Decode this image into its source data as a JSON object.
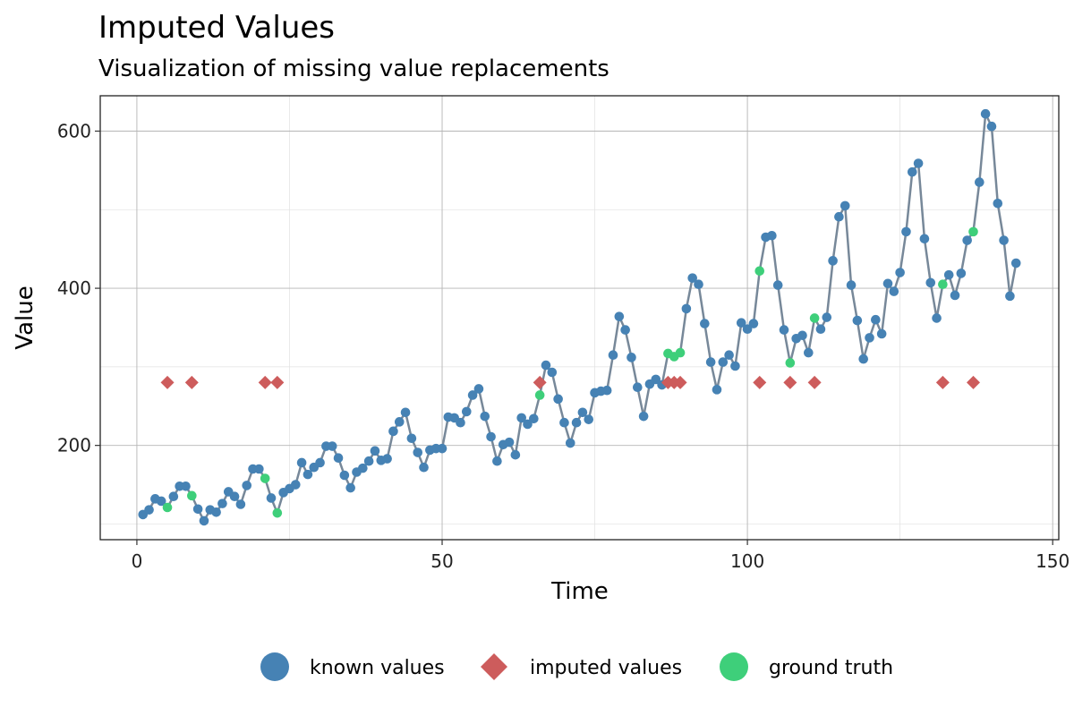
{
  "chart_data": {
    "type": "scatter",
    "title": "Imputed Values",
    "subtitle": "Visualization of missing value replacements",
    "xlabel": "Time",
    "ylabel": "Value",
    "xlim": [
      -6,
      151
    ],
    "ylim": [
      80,
      645
    ],
    "xticks": [
      0,
      50,
      100,
      150
    ],
    "yticks": [
      200,
      400,
      600
    ],
    "xticks_minor": [
      25,
      75,
      125
    ],
    "yticks_minor": [
      100,
      300,
      500
    ],
    "grid": true,
    "legend_position": "bottom",
    "colors": {
      "known": "#4682b4",
      "imputed": "#cd5c5c",
      "truth": "#3ecf7a",
      "line": "#778899"
    },
    "legend": [
      {
        "key": "known",
        "label": "known values",
        "shape": "circle"
      },
      {
        "key": "imputed",
        "label": "imputed values",
        "shape": "diamond"
      },
      {
        "key": "truth",
        "label": "ground truth",
        "shape": "circle"
      }
    ],
    "series": [
      {
        "name": "known values",
        "key": "known",
        "x": [
          1,
          2,
          3,
          4,
          6,
          7,
          8,
          10,
          11,
          12,
          13,
          14,
          15,
          16,
          17,
          18,
          19,
          20,
          22,
          24,
          25,
          26,
          27,
          28,
          29,
          30,
          31,
          32,
          33,
          34,
          35,
          36,
          37,
          38,
          39,
          40,
          41,
          42,
          43,
          44,
          45,
          46,
          47,
          48,
          49,
          50,
          51,
          52,
          53,
          54,
          55,
          56,
          57,
          58,
          59,
          60,
          61,
          62,
          63,
          64,
          65,
          67,
          68,
          69,
          70,
          71,
          72,
          73,
          74,
          75,
          76,
          77,
          78,
          79,
          80,
          81,
          82,
          83,
          84,
          85,
          86,
          90,
          91,
          92,
          93,
          94,
          95,
          96,
          97,
          98,
          99,
          100,
          101,
          103,
          104,
          105,
          106,
          108,
          109,
          110,
          112,
          113,
          114,
          115,
          116,
          117,
          118,
          119,
          120,
          121,
          122,
          123,
          124,
          125,
          126,
          127,
          128,
          129,
          130,
          131,
          133,
          134,
          135,
          136,
          138,
          139,
          140,
          141,
          142,
          143,
          144
        ],
        "y": [
          112,
          118,
          132,
          129,
          135,
          148,
          148,
          119,
          104,
          118,
          115,
          126,
          141,
          135,
          125,
          149,
          170,
          170,
          133,
          140,
          145,
          150,
          178,
          163,
          172,
          178,
          199,
          199,
          184,
          162,
          146,
          166,
          171,
          180,
          193,
          181,
          183,
          218,
          230,
          242,
          209,
          191,
          172,
          194,
          196,
          196,
          236,
          235,
          229,
          243,
          264,
          272,
          237,
          211,
          180,
          201,
          204,
          188,
          235,
          227,
          234,
          302,
          293,
          259,
          229,
          203,
          229,
          242,
          233,
          267,
          269,
          270,
          315,
          364,
          347,
          312,
          274,
          237,
          278,
          284,
          277,
          374,
          413,
          405,
          355,
          306,
          271,
          306,
          315,
          301,
          356,
          348,
          355,
          465,
          467,
          404,
          347,
          336,
          340,
          318,
          348,
          363,
          435,
          491,
          505,
          404,
          359,
          310,
          337,
          360,
          342,
          406,
          396,
          420,
          472,
          548,
          559,
          463,
          407,
          362,
          417,
          391,
          419,
          461,
          535,
          622,
          606,
          508,
          461,
          390,
          432
        ]
      },
      {
        "name": "imputed values",
        "key": "imputed",
        "x": [
          5,
          9,
          21,
          23,
          66,
          87,
          88,
          89,
          102,
          107,
          111,
          132,
          137
        ],
        "y": [
          280,
          280,
          280,
          280,
          280,
          280,
          280,
          280,
          280,
          280,
          280,
          280,
          280
        ]
      },
      {
        "name": "ground truth",
        "key": "truth",
        "x": [
          5,
          9,
          21,
          23,
          66,
          87,
          88,
          89,
          102,
          107,
          111,
          132,
          137
        ],
        "y": [
          121,
          136,
          158,
          114,
          264,
          317,
          313,
          318,
          422,
          305,
          362,
          405,
          472
        ]
      }
    ]
  }
}
